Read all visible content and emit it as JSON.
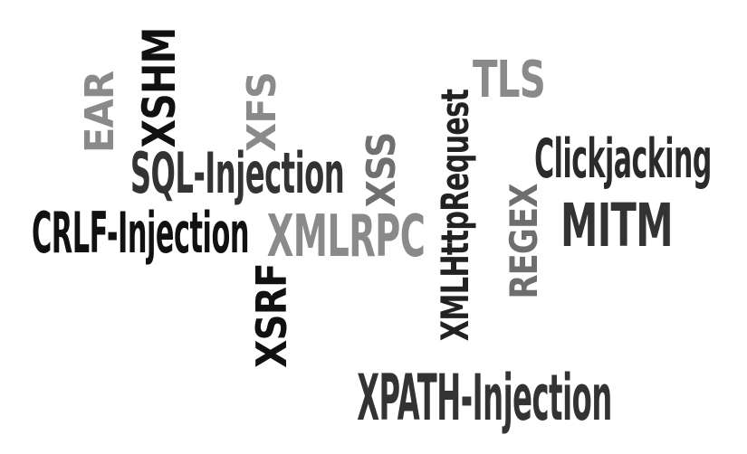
{
  "words": {
    "ear": {
      "text": "EAR",
      "color": "#8a8a8a"
    },
    "xshm": {
      "text": "XSHM",
      "color": "#111111"
    },
    "xfs": {
      "text": "XFS",
      "color": "#8a8a8a"
    },
    "xmlhttprequest": {
      "text": "XMLHttpRequest",
      "color": "#222222"
    },
    "tls": {
      "text": "TLS",
      "color": "#8a8a8a"
    },
    "sql_injection": {
      "text": "SQL-Injection",
      "color": "#333333"
    },
    "xss": {
      "text": "XSS",
      "color": "#707070"
    },
    "clickjacking": {
      "text": "Clickjacking",
      "color": "#2a2a2a"
    },
    "crlf_injection": {
      "text": "CRLF-Injection",
      "color": "#111111"
    },
    "xmlrpc": {
      "text": "XMLRPC",
      "color": "#8a8a8a"
    },
    "regex": {
      "text": "REGEX",
      "color": "#6e6e6e"
    },
    "mitm": {
      "text": "MITM",
      "color": "#333333"
    },
    "xsrf": {
      "text": "XSRF",
      "color": "#111111"
    },
    "xpath_injection": {
      "text": "XPATH-Injection",
      "color": "#333333"
    }
  }
}
